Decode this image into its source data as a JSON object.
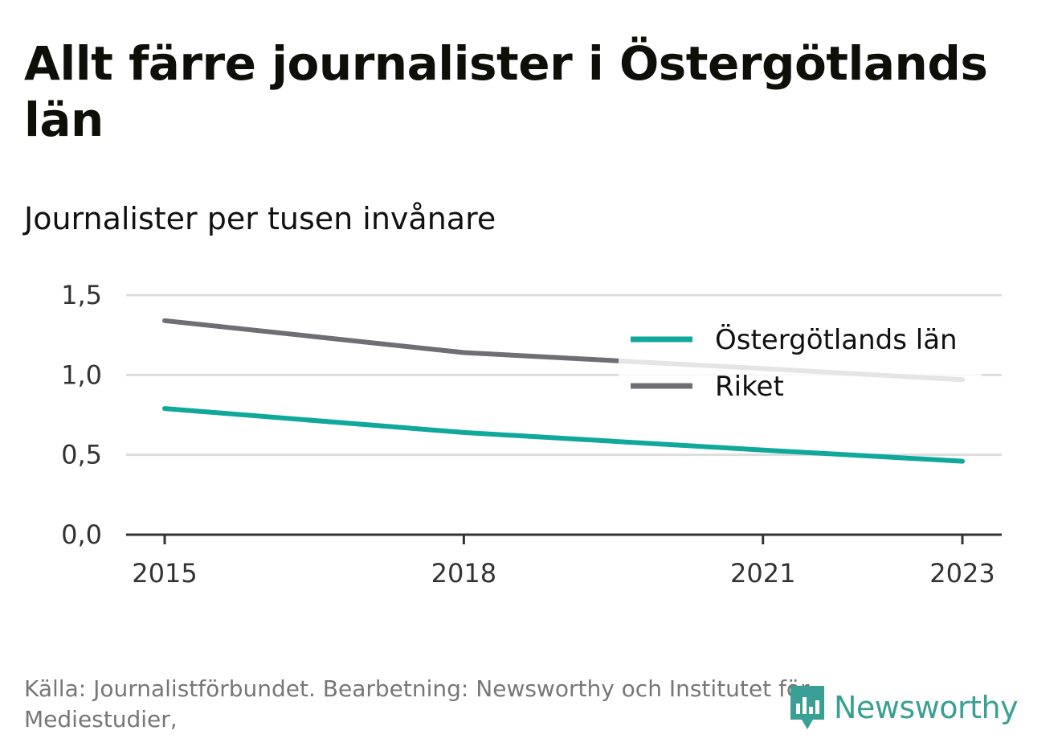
{
  "title": "Allt färre journalister i Östergötlands län",
  "subtitle": "Journalister per tusen invånare",
  "source": "Källa: Journalistförbundet. Bearbetning: Newsworthy och Institutet för Mediestudier,",
  "logo_text": "Newsworthy",
  "colors": {
    "ostergotland": "#0fa89b",
    "riket": "#6f6e74",
    "grid": "#dddddd",
    "axis": "#333333",
    "logo": "#3a9f94"
  },
  "icons": {
    "logo": "newsworthy-bar-chart-icon"
  },
  "chart_data": {
    "type": "line",
    "x_ticks": [
      "2015",
      "2018",
      "2021",
      "2023"
    ],
    "y_ticks": [
      "0,0",
      "0,5",
      "1,0",
      "1,5"
    ],
    "xlim": [
      2015,
      2023
    ],
    "ylim": [
      0,
      1.5
    ],
    "grid": true,
    "legend_position": "top-right",
    "series": [
      {
        "name": "Östergötlands län",
        "color": "#0fa89b",
        "points": [
          [
            2015,
            0.79
          ],
          [
            2018,
            0.64
          ],
          [
            2021,
            0.53
          ],
          [
            2023,
            0.46
          ]
        ]
      },
      {
        "name": "Riket",
        "color": "#6f6e74",
        "points": [
          [
            2015,
            1.34
          ],
          [
            2018,
            1.14
          ],
          [
            2021,
            1.04
          ],
          [
            2023,
            0.97
          ]
        ]
      }
    ]
  }
}
